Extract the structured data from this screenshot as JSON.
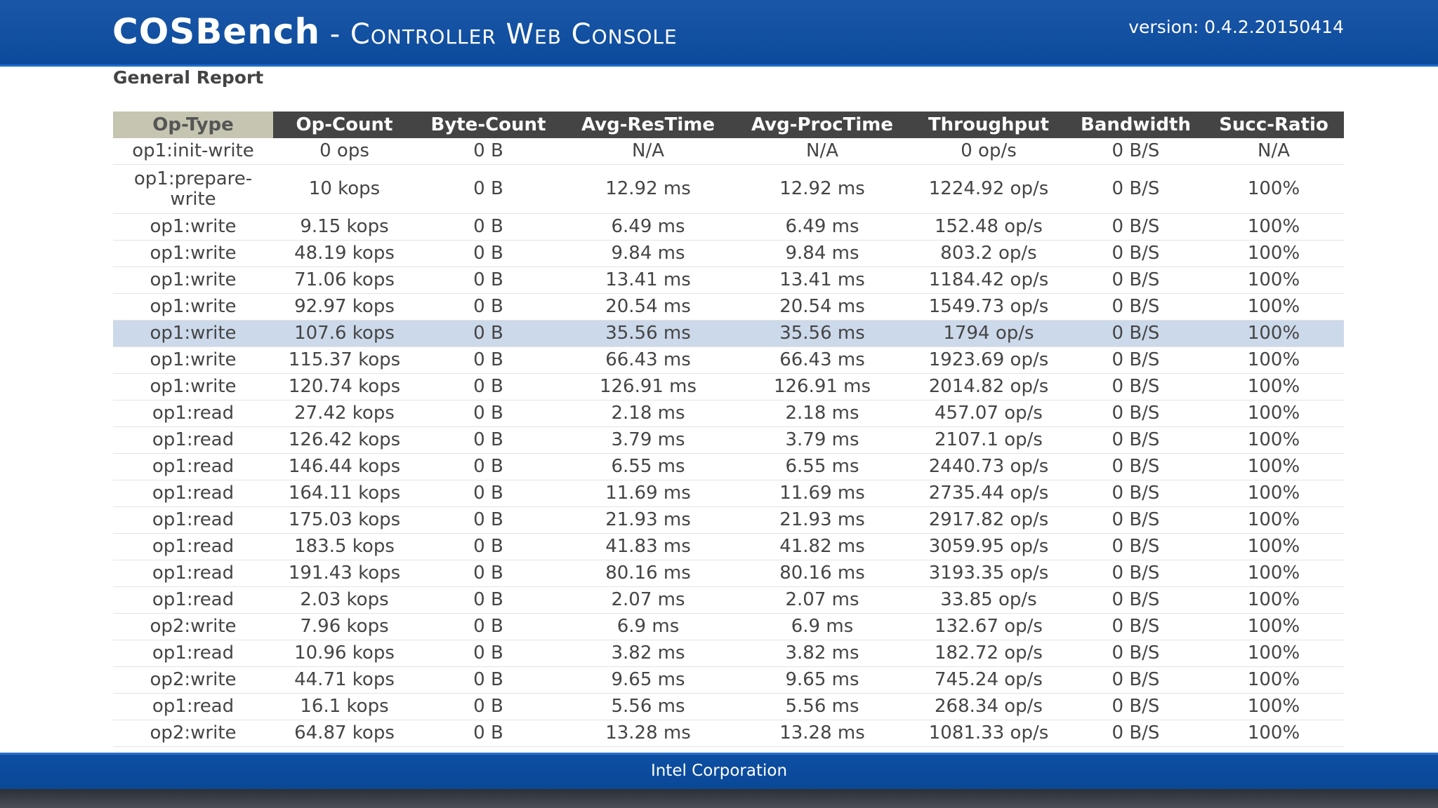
{
  "header": {
    "brand_main": "COSBench",
    "brand_sub": " - Controller Web Console",
    "version": "version: 0.4.2.20150414"
  },
  "section_title": "General Report",
  "report": {
    "columns": [
      "Op-Type",
      "Op-Count",
      "Byte-Count",
      "Avg-ResTime",
      "Avg-ProcTime",
      "Throughput",
      "Bandwidth",
      "Succ-Ratio"
    ],
    "selected_row_index": 6,
    "rows": [
      [
        "op1:init-write",
        "0 ops",
        "0 B",
        "N/A",
        "N/A",
        "0 op/s",
        "0 B/S",
        "N/A"
      ],
      [
        "op1:prepare-write",
        "10 kops",
        "0 B",
        "12.92 ms",
        "12.92 ms",
        "1224.92 op/s",
        "0 B/S",
        "100%"
      ],
      [
        "op1:write",
        "9.15 kops",
        "0 B",
        "6.49 ms",
        "6.49 ms",
        "152.48 op/s",
        "0 B/S",
        "100%"
      ],
      [
        "op1:write",
        "48.19 kops",
        "0 B",
        "9.84 ms",
        "9.84 ms",
        "803.2 op/s",
        "0 B/S",
        "100%"
      ],
      [
        "op1:write",
        "71.06 kops",
        "0 B",
        "13.41 ms",
        "13.41 ms",
        "1184.42 op/s",
        "0 B/S",
        "100%"
      ],
      [
        "op1:write",
        "92.97 kops",
        "0 B",
        "20.54 ms",
        "20.54 ms",
        "1549.73 op/s",
        "0 B/S",
        "100%"
      ],
      [
        "op1:write",
        "107.6 kops",
        "0 B",
        "35.56 ms",
        "35.56 ms",
        "1794 op/s",
        "0 B/S",
        "100%"
      ],
      [
        "op1:write",
        "115.37 kops",
        "0 B",
        "66.43 ms",
        "66.43 ms",
        "1923.69 op/s",
        "0 B/S",
        "100%"
      ],
      [
        "op1:write",
        "120.74 kops",
        "0 B",
        "126.91 ms",
        "126.91 ms",
        "2014.82 op/s",
        "0 B/S",
        "100%"
      ],
      [
        "op1:read",
        "27.42 kops",
        "0 B",
        "2.18 ms",
        "2.18 ms",
        "457.07 op/s",
        "0 B/S",
        "100%"
      ],
      [
        "op1:read",
        "126.42 kops",
        "0 B",
        "3.79 ms",
        "3.79 ms",
        "2107.1 op/s",
        "0 B/S",
        "100%"
      ],
      [
        "op1:read",
        "146.44 kops",
        "0 B",
        "6.55 ms",
        "6.55 ms",
        "2440.73 op/s",
        "0 B/S",
        "100%"
      ],
      [
        "op1:read",
        "164.11 kops",
        "0 B",
        "11.69 ms",
        "11.69 ms",
        "2735.44 op/s",
        "0 B/S",
        "100%"
      ],
      [
        "op1:read",
        "175.03 kops",
        "0 B",
        "21.93 ms",
        "21.93 ms",
        "2917.82 op/s",
        "0 B/S",
        "100%"
      ],
      [
        "op1:read",
        "183.5 kops",
        "0 B",
        "41.83 ms",
        "41.82 ms",
        "3059.95 op/s",
        "0 B/S",
        "100%"
      ],
      [
        "op1:read",
        "191.43 kops",
        "0 B",
        "80.16 ms",
        "80.16 ms",
        "3193.35 op/s",
        "0 B/S",
        "100%"
      ],
      [
        "op1:read",
        "2.03 kops",
        "0 B",
        "2.07 ms",
        "2.07 ms",
        "33.85 op/s",
        "0 B/S",
        "100%"
      ],
      [
        "op2:write",
        "7.96 kops",
        "0 B",
        "6.9 ms",
        "6.9 ms",
        "132.67 op/s",
        "0 B/S",
        "100%"
      ],
      [
        "op1:read",
        "10.96 kops",
        "0 B",
        "3.82 ms",
        "3.82 ms",
        "182.72 op/s",
        "0 B/S",
        "100%"
      ],
      [
        "op2:write",
        "44.71 kops",
        "0 B",
        "9.65 ms",
        "9.65 ms",
        "745.24 op/s",
        "0 B/S",
        "100%"
      ],
      [
        "op1:read",
        "16.1 kops",
        "0 B",
        "5.56 ms",
        "5.56 ms",
        "268.34 op/s",
        "0 B/S",
        "100%"
      ],
      [
        "op2:write",
        "64.87 kops",
        "0 B",
        "13.28 ms",
        "13.28 ms",
        "1081.33 op/s",
        "0 B/S",
        "100%"
      ]
    ]
  },
  "footer": {
    "text": "Intel Corporation"
  },
  "colors": {
    "header_blue": "#0b4a9b",
    "table_header_dark": "#444444",
    "table_header_first": "#c5c5b2",
    "selected_row": "#ccd9ea"
  }
}
